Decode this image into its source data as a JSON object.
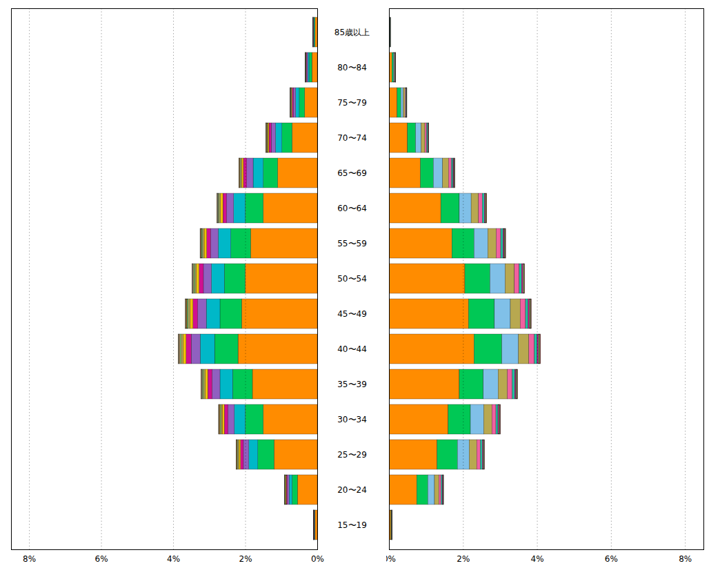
{
  "chart_data": [
    {
      "type": "bar",
      "orientation": "horizontal",
      "stacked": true,
      "grid": true,
      "categories": [
        "15〜19",
        "20〜24",
        "25〜29",
        "30〜34",
        "35〜39",
        "40〜44",
        "45〜49",
        "50〜54",
        "55〜59",
        "60〜64",
        "65〜69",
        "70〜74",
        "75〜79",
        "80〜84",
        "85歳以上"
      ],
      "xlim": [
        8.5,
        0
      ],
      "xticks": [
        {
          "value": 0,
          "label": "0%"
        },
        {
          "value": 2,
          "label": "2%"
        },
        {
          "value": 4,
          "label": "4%"
        },
        {
          "value": 6,
          "label": "6%"
        },
        {
          "value": 8,
          "label": "8%"
        }
      ],
      "series": [
        {
          "color": "#FF8C00",
          "values": [
            0.06,
            0.55,
            1.2,
            1.5,
            1.8,
            2.2,
            2.1,
            2.0,
            1.85,
            1.5,
            1.1,
            0.7,
            0.35,
            0.15,
            0.06
          ]
        },
        {
          "color": "#00C855",
          "values": [
            0.01,
            0.15,
            0.45,
            0.5,
            0.55,
            0.65,
            0.6,
            0.58,
            0.55,
            0.5,
            0.4,
            0.28,
            0.15,
            0.07,
            0.025
          ]
        },
        {
          "color": "#00B8C8",
          "values": [
            0.01,
            0.08,
            0.25,
            0.3,
            0.35,
            0.4,
            0.38,
            0.36,
            0.35,
            0.32,
            0.28,
            0.18,
            0.1,
            0.045,
            0.015
          ]
        },
        {
          "color": "#9060C0",
          "values": [
            0.01,
            0.05,
            0.15,
            0.18,
            0.22,
            0.25,
            0.24,
            0.22,
            0.21,
            0.2,
            0.18,
            0.12,
            0.065,
            0.028,
            0.009
          ]
        },
        {
          "color": "#D01090",
          "values": [
            0.005,
            0.03,
            0.08,
            0.1,
            0.12,
            0.14,
            0.13,
            0.12,
            0.11,
            0.1,
            0.09,
            0.06,
            0.035,
            0.015,
            0.005
          ]
        },
        {
          "color": "#F0C000",
          "values": [
            0.003,
            0.02,
            0.05,
            0.06,
            0.07,
            0.08,
            0.08,
            0.075,
            0.07,
            0.065,
            0.05,
            0.035,
            0.02,
            0.009,
            0.003
          ]
        },
        {
          "color": "#B0A050",
          "values": [
            0.002,
            0.01,
            0.03,
            0.04,
            0.05,
            0.06,
            0.055,
            0.05,
            0.048,
            0.04,
            0.03,
            0.022,
            0.013,
            0.006,
            0.002
          ]
        },
        {
          "color": "#70C870",
          "values": [
            0.001,
            0.01,
            0.02,
            0.025,
            0.03,
            0.035,
            0.033,
            0.03,
            0.028,
            0.025,
            0.02,
            0.014,
            0.008,
            0.004,
            0.001
          ]
        },
        {
          "color": "#F08020",
          "values": [
            0.001,
            0.005,
            0.01,
            0.015,
            0.018,
            0.02,
            0.019,
            0.018,
            0.017,
            0.015,
            0.012,
            0.009,
            0.005,
            0.002,
            0.001
          ]
        },
        {
          "color": "#80C0E8",
          "values": [
            0.001,
            0.003,
            0.008,
            0.01,
            0.012,
            0.013,
            0.012,
            0.012,
            0.011,
            0.01,
            0.008,
            0.006,
            0.003,
            0.002,
            0.001
          ]
        },
        {
          "color": "#C0A000",
          "values": [
            0.001,
            0.002,
            0.005,
            0.006,
            0.007,
            0.008,
            0.007,
            0.007,
            0.006,
            0.006,
            0.005,
            0.004,
            0.002,
            0.001,
            0.0
          ]
        },
        {
          "color": "#E07000",
          "values": [
            0.001,
            0.002,
            0.003,
            0.004,
            0.005,
            0.006,
            0.005,
            0.005,
            0.004,
            0.004,
            0.003,
            0.002,
            0.001,
            0.001,
            0.0
          ]
        }
      ]
    },
    {
      "type": "bar",
      "orientation": "horizontal",
      "stacked": true,
      "grid": true,
      "tick_labels": "x",
      "categories": [
        "15〜19",
        "20〜24",
        "25〜29",
        "30〜34",
        "35〜39",
        "40〜44",
        "45〜49",
        "50〜54",
        "55〜59",
        "60〜64",
        "65〜69",
        "70〜74",
        "75〜79",
        "80〜84",
        "85歳以上"
      ],
      "xlim": [
        0,
        8.5
      ],
      "xticks": [
        {
          "value": 0,
          "label": "0%"
        },
        {
          "value": 2,
          "label": "2%"
        },
        {
          "value": 4,
          "label": "4%"
        },
        {
          "value": 6,
          "label": "6%"
        },
        {
          "value": 8,
          "label": "8%"
        }
      ],
      "series": [
        {
          "color": "#FF8C00",
          "values": [
            0.05,
            0.75,
            1.3,
            1.6,
            1.9,
            2.3,
            2.15,
            2.05,
            1.7,
            1.4,
            0.85,
            0.5,
            0.22,
            0.08,
            0.02
          ]
        },
        {
          "color": "#00C855",
          "values": [
            0.01,
            0.3,
            0.55,
            0.6,
            0.65,
            0.75,
            0.7,
            0.68,
            0.6,
            0.5,
            0.35,
            0.22,
            0.1,
            0.04,
            0.009
          ]
        },
        {
          "color": "#80C0E8",
          "values": [
            0.008,
            0.18,
            0.32,
            0.36,
            0.4,
            0.45,
            0.43,
            0.41,
            0.37,
            0.32,
            0.25,
            0.15,
            0.068,
            0.026,
            0.006
          ]
        },
        {
          "color": "#B8A850",
          "values": [
            0.006,
            0.12,
            0.2,
            0.22,
            0.25,
            0.28,
            0.27,
            0.25,
            0.23,
            0.2,
            0.16,
            0.1,
            0.045,
            0.017,
            0.004
          ]
        },
        {
          "color": "#F060A0",
          "values": [
            0.003,
            0.06,
            0.1,
            0.11,
            0.13,
            0.15,
            0.14,
            0.13,
            0.12,
            0.1,
            0.08,
            0.05,
            0.024,
            0.009,
            0.002
          ]
        },
        {
          "color": "#20C0A0",
          "values": [
            0.002,
            0.03,
            0.05,
            0.055,
            0.065,
            0.075,
            0.07,
            0.065,
            0.06,
            0.055,
            0.04,
            0.025,
            0.012,
            0.005,
            0.001
          ]
        },
        {
          "color": "#D01090",
          "values": [
            0.001,
            0.015,
            0.025,
            0.028,
            0.033,
            0.038,
            0.035,
            0.033,
            0.03,
            0.028,
            0.02,
            0.013,
            0.006,
            0.003,
            0.0
          ]
        },
        {
          "color": "#70C870",
          "values": [
            0.001,
            0.008,
            0.015,
            0.017,
            0.02,
            0.023,
            0.021,
            0.02,
            0.018,
            0.016,
            0.012,
            0.008,
            0.004,
            0.002,
            0.0
          ]
        },
        {
          "color": "#F0C000",
          "values": [
            0.001,
            0.005,
            0.008,
            0.01,
            0.012,
            0.014,
            0.013,
            0.012,
            0.011,
            0.01,
            0.007,
            0.005,
            0.002,
            0.001,
            0.0
          ]
        },
        {
          "color": "#C060C0",
          "values": [
            0.001,
            0.003,
            0.005,
            0.006,
            0.007,
            0.008,
            0.008,
            0.007,
            0.007,
            0.006,
            0.005,
            0.003,
            0.001,
            0.001,
            0.0
          ]
        },
        {
          "color": "#A08020",
          "values": [
            0.0,
            0.002,
            0.003,
            0.004,
            0.005,
            0.005,
            0.005,
            0.004,
            0.004,
            0.004,
            0.003,
            0.002,
            0.001,
            0.0,
            0.0
          ]
        },
        {
          "color": "#FF4060",
          "values": [
            0.0,
            0.001,
            0.002,
            0.003,
            0.003,
            0.004,
            0.003,
            0.003,
            0.003,
            0.003,
            0.002,
            0.001,
            0.001,
            0.0,
            0.0
          ]
        }
      ]
    }
  ]
}
